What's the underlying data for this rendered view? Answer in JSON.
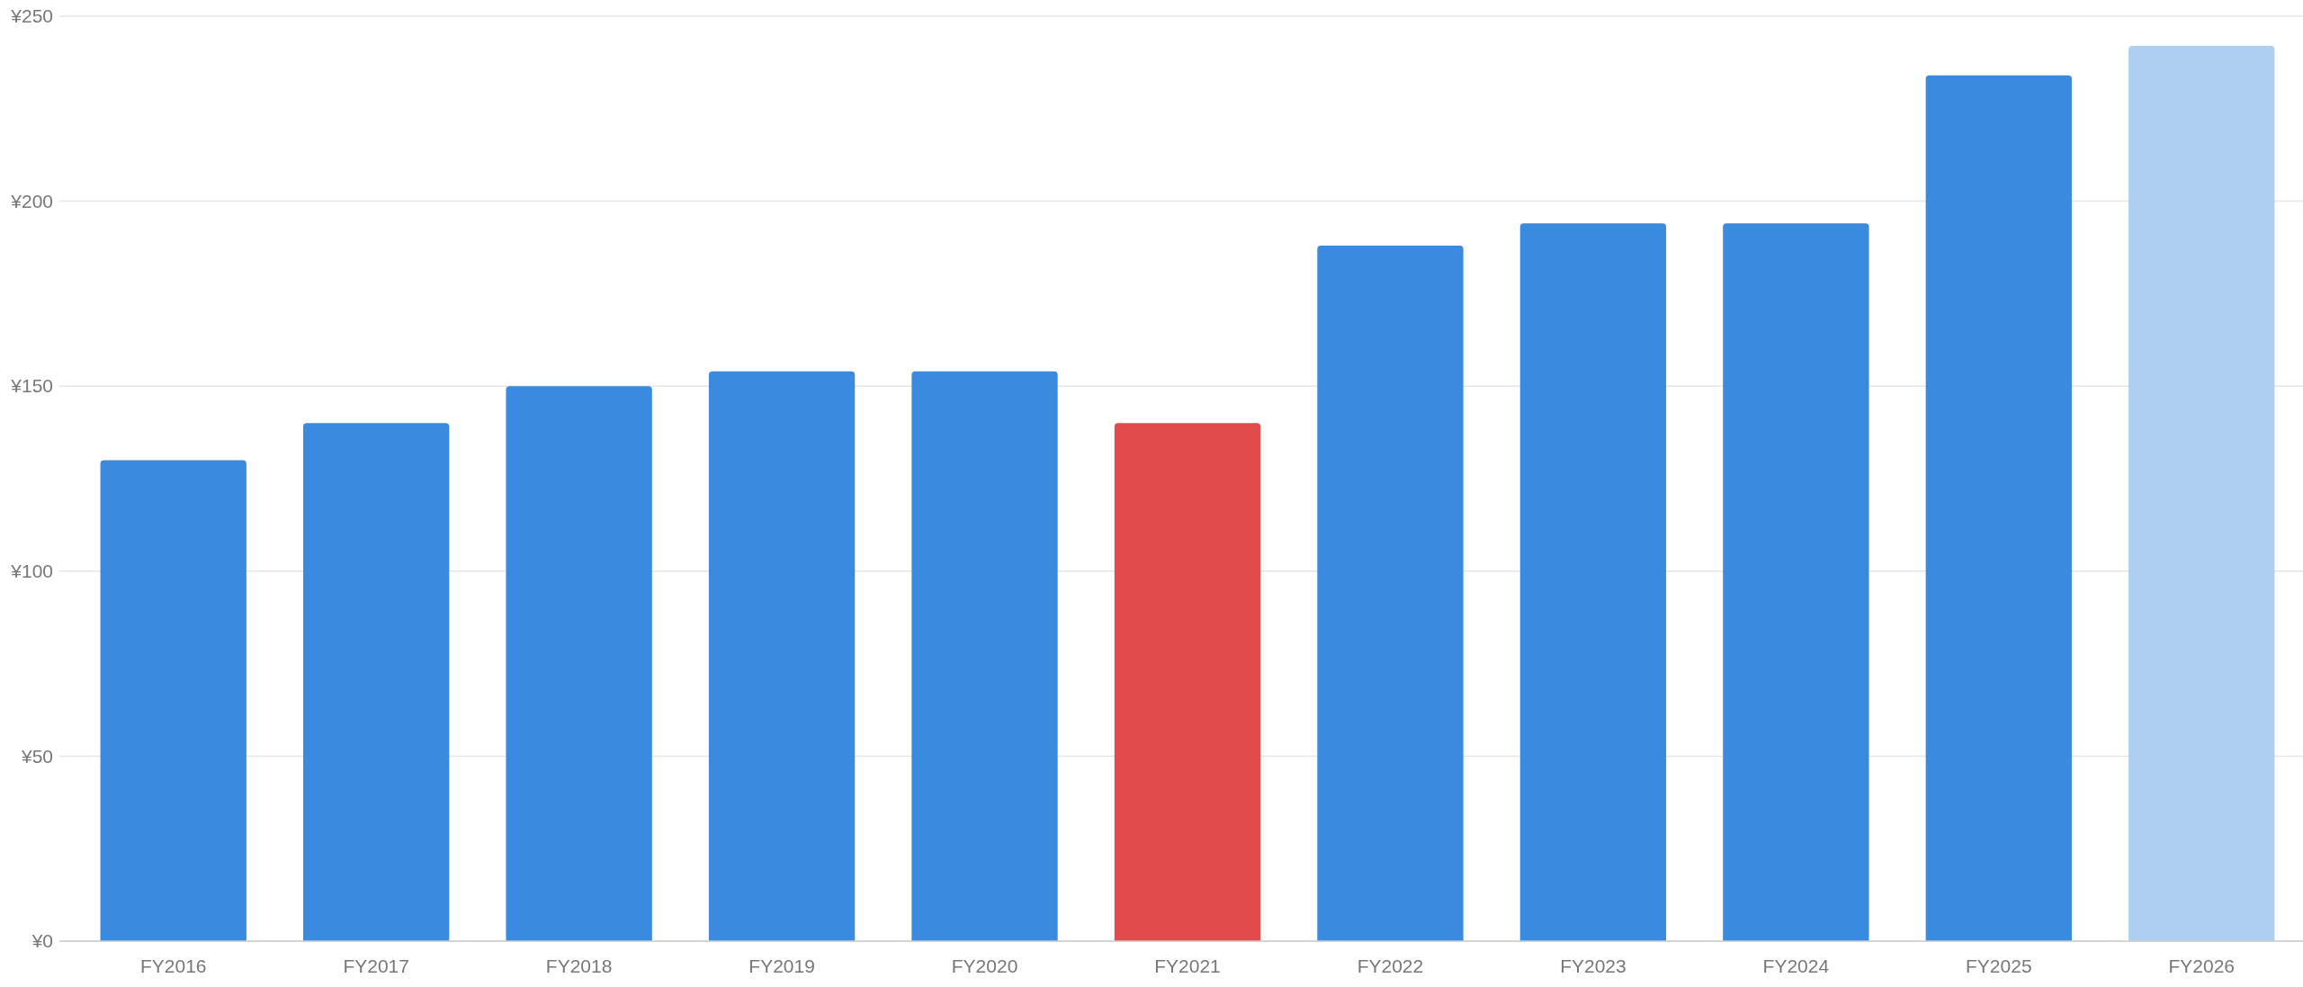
{
  "chart_data": {
    "type": "bar",
    "categories": [
      "FY2016",
      "FY2017",
      "FY2018",
      "FY2019",
      "FY2020",
      "FY2021",
      "FY2022",
      "FY2023",
      "FY2024",
      "FY2025",
      "FY2026"
    ],
    "values": [
      130,
      140,
      150,
      154,
      154,
      140,
      188,
      194,
      194,
      234,
      242
    ],
    "colors": [
      "#3a8bdf",
      "#3a8bdf",
      "#3a8bdf",
      "#3a8bdf",
      "#3a8bdf",
      "#e24b4b",
      "#3a8bdf",
      "#3a8bdf",
      "#3a8bdf",
      "#3a8bdf",
      "#aecff2"
    ],
    "ylim": [
      0,
      250
    ],
    "yticks": [
      {
        "value": 0,
        "label": "¥0"
      },
      {
        "value": 50,
        "label": "¥50"
      },
      {
        "value": 100,
        "label": "¥100"
      },
      {
        "value": 150,
        "label": "¥150"
      },
      {
        "value": 200,
        "label": "¥200"
      },
      {
        "value": 250,
        "label": "¥250"
      }
    ],
    "grid": "y"
  }
}
